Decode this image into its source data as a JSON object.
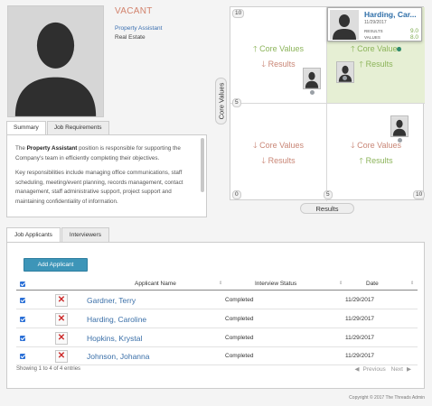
{
  "profile": {
    "status": "VACANT",
    "position": "Property Assistant",
    "department": "Real Estate"
  },
  "summary": {
    "tabs": [
      "Summary",
      "Job Requirements"
    ],
    "para1_pre": "The ",
    "para1_bold": "Property Assistant",
    "para1_post": " position is responsible for supporting the Company's team in efficiently completing their objectives.",
    "para2": "Key responsibilities include managing office communications, staff scheduling, meeting/event planning, records management, contact management, staff administrative support, project support and maintaining confidentiality of information."
  },
  "chart": {
    "y_axis_label": "Core Values",
    "x_axis_label": "Results",
    "ticks": {
      "top_left": "10",
      "mid_left": "5",
      "bottom_left": "0",
      "bottom_mid": "5",
      "bottom_right": "10"
    },
    "quadrants": {
      "tl": {
        "line1": "Core Values",
        "line1_dir": "up",
        "line2": "Results",
        "line2_dir": "down"
      },
      "tr": {
        "line1": "Core Values",
        "line1_dir": "up",
        "line2": "Results",
        "line2_dir": "up"
      },
      "bl": {
        "line1": "Core Values",
        "line1_dir": "down",
        "line2": "Results",
        "line2_dir": "down"
      },
      "br": {
        "line1": "Core Values",
        "line1_dir": "down",
        "line2": "Results",
        "line2_dir": "up"
      }
    },
    "callout": {
      "name": "Harding, Car...",
      "date": "11/29/2017",
      "results_label": "RESULTS",
      "results_value": "9.0",
      "values_label": "VALUES",
      "values_value": "8.0"
    },
    "colors": {
      "high_quadrant": "#e6efd4",
      "up_arrow": "#8cb45a",
      "down_arrow": "#c98676"
    }
  },
  "applicants": {
    "tabs": [
      "Job Applicants",
      "Interviewers"
    ],
    "add_button": "Add Applicant",
    "columns": {
      "name": "Applicant Name",
      "status": "Interview Status",
      "date": "Date"
    },
    "rows": [
      {
        "name": "Gardner, Terry",
        "status": "Completed",
        "date": "11/29/2017"
      },
      {
        "name": "Harding, Caroline",
        "status": "Completed",
        "date": "11/29/2017"
      },
      {
        "name": "Hopkins, Krystal",
        "status": "Completed",
        "date": "11/29/2017"
      },
      {
        "name": "Johnson, Johanna",
        "status": "Completed",
        "date": "11/29/2017"
      }
    ],
    "info": "Showing 1 to 4 of 4 entries",
    "pager": {
      "previous": "Previous",
      "next": "Next"
    }
  },
  "footer": "Copyright © 2017 The Threads Admin"
}
